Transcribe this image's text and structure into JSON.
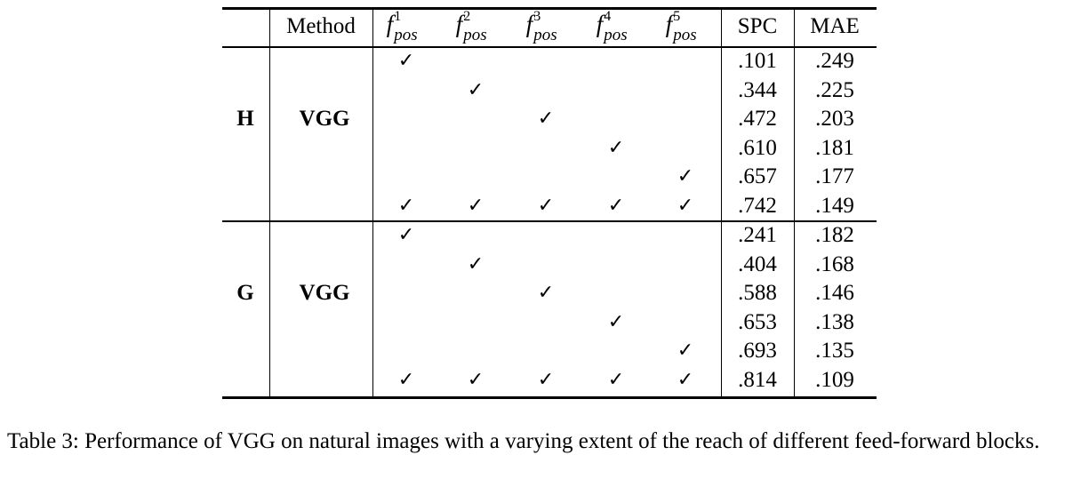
{
  "table": {
    "headers": {
      "method": "Method",
      "f_base": "f",
      "f_sub": "pos",
      "f_sups": [
        "1",
        "2",
        "3",
        "4",
        "5"
      ],
      "spc": "SPC",
      "mae": "MAE"
    },
    "check_symbol": "✓",
    "groups": [
      {
        "label": "H",
        "method": "VGG",
        "rows": [
          {
            "checks": [
              1,
              0,
              0,
              0,
              0
            ],
            "spc": ".101",
            "mae": ".249"
          },
          {
            "checks": [
              0,
              1,
              0,
              0,
              0
            ],
            "spc": ".344",
            "mae": ".225"
          },
          {
            "checks": [
              0,
              0,
              1,
              0,
              0
            ],
            "spc": ".472",
            "mae": ".203"
          },
          {
            "checks": [
              0,
              0,
              0,
              1,
              0
            ],
            "spc": ".610",
            "mae": ".181"
          },
          {
            "checks": [
              0,
              0,
              0,
              0,
              1
            ],
            "spc": ".657",
            "mae": ".177"
          },
          {
            "checks": [
              1,
              1,
              1,
              1,
              1
            ],
            "spc": ".742",
            "mae": ".149"
          }
        ]
      },
      {
        "label": "G",
        "method": "VGG",
        "rows": [
          {
            "checks": [
              1,
              0,
              0,
              0,
              0
            ],
            "spc": ".241",
            "mae": ".182"
          },
          {
            "checks": [
              0,
              1,
              0,
              0,
              0
            ],
            "spc": ".404",
            "mae": ".168"
          },
          {
            "checks": [
              0,
              0,
              1,
              0,
              0
            ],
            "spc": ".588",
            "mae": ".146"
          },
          {
            "checks": [
              0,
              0,
              0,
              1,
              0
            ],
            "spc": ".653",
            "mae": ".138"
          },
          {
            "checks": [
              0,
              0,
              0,
              0,
              1
            ],
            "spc": ".693",
            "mae": ".135"
          },
          {
            "checks": [
              1,
              1,
              1,
              1,
              1
            ],
            "spc": ".814",
            "mae": ".109"
          }
        ]
      }
    ]
  },
  "caption": "Table 3: Performance of VGG on natural images with a varying extent of the reach of different feed-forward blocks."
}
